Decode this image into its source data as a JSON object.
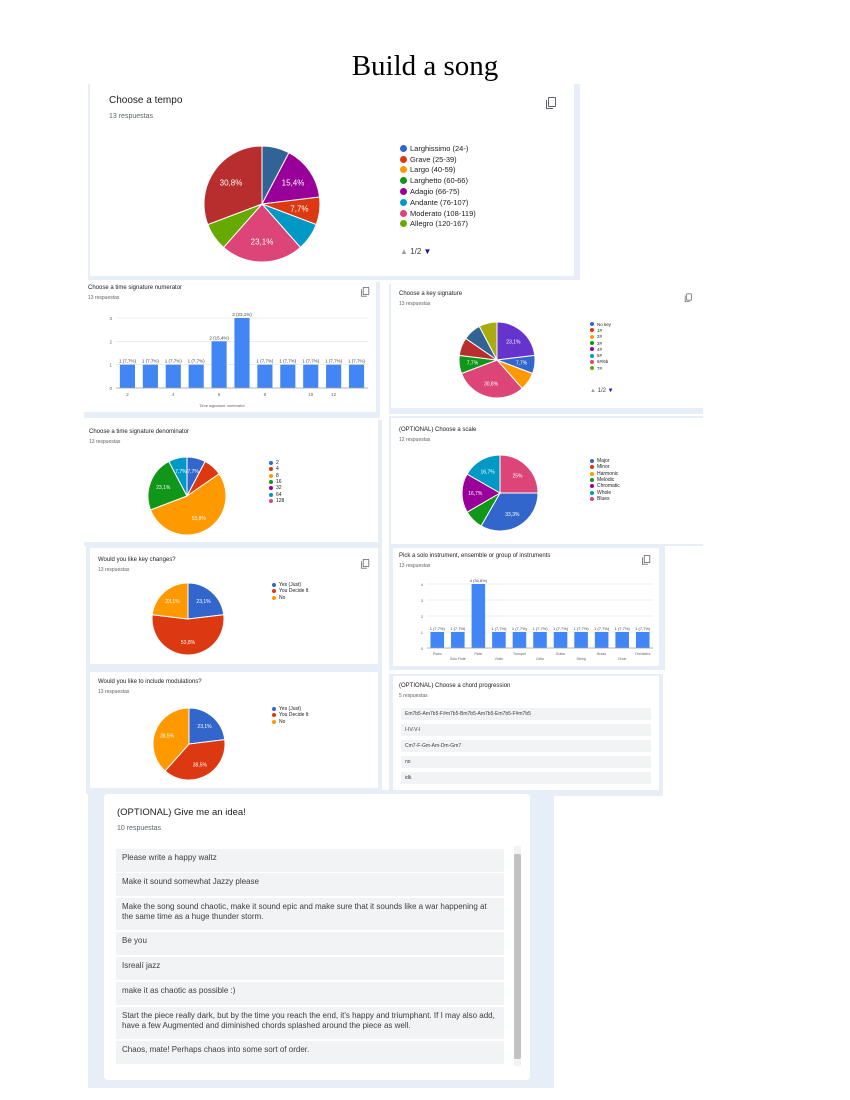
{
  "page": {
    "title": "Build a song"
  },
  "colors": [
    "#3366cc",
    "#dc3912",
    "#ff9900",
    "#109618",
    "#990099",
    "#0099c6",
    "#dd4477",
    "#66aa00",
    "#b82e2e",
    "#316395",
    "#994499",
    "#aaaa11"
  ],
  "tempo": {
    "title": "Choose a tempo",
    "count": "13 respuestas",
    "pager": "1/2",
    "legend": [
      "Larghissimo (24-)",
      "Grave (25-39)",
      "Largo (40-59)",
      "Larghetto (60-66)",
      "Adagio (66-75)",
      "Andante (76-107)",
      "Moderato (108-119)",
      "Allegro (120-167)"
    ],
    "chart_data": {
      "type": "pie",
      "title": "Choose a tempo",
      "slices": [
        {
          "label": "Larghissimo (24-)",
          "value": 7.7,
          "color": "#3366cc",
          "show": ""
        },
        {
          "label": "Grave (25-39)",
          "value": 0,
          "color": "#dc3912",
          "show": ""
        },
        {
          "label": "Largo (40-59)",
          "value": 0,
          "color": "#ff9900",
          "show": ""
        },
        {
          "label": "Larghetto (60-66)",
          "value": 0,
          "color": "#109618",
          "show": ""
        }
      ],
      "drawn": [
        {
          "value": 7.7,
          "color": "#316395",
          "label": ""
        },
        {
          "value": 15.4,
          "color": "#990099",
          "label": "15,4%"
        },
        {
          "value": 7.7,
          "color": "#dc3912",
          "label": "7,7%"
        },
        {
          "value": 7.7,
          "color": "#0099c6",
          "label": ""
        },
        {
          "value": 23.1,
          "color": "#dd4477",
          "label": "23,1%"
        },
        {
          "value": 7.7,
          "color": "#66aa00",
          "label": ""
        },
        {
          "value": 30.8,
          "color": "#b82e2e",
          "label": "30,8%"
        }
      ]
    }
  },
  "numerator": {
    "title": "Choose a time signature numerator",
    "count": "13 respuestas",
    "chart_data": {
      "type": "bar",
      "categories": [
        "2",
        "3",
        "4",
        "5",
        "6",
        "7",
        "8",
        "9",
        "11",
        "12",
        "13"
      ],
      "values": [
        1,
        1,
        1,
        1,
        2,
        3,
        1,
        1,
        1,
        1,
        1
      ],
      "labels": [
        "1 (7,7%)",
        "1 (7,7%)",
        "1 (7,7%)",
        "1 (7,7%)",
        "2 (15,4%)",
        "3 (23,1%)",
        "1 (7,7%)",
        "1 (7,7%)",
        "1 (7,7%)",
        "1 (7,7%)",
        "1 (7,7%)"
      ],
      "yticks": [
        "0",
        "1",
        "2",
        "3"
      ],
      "ylim": [
        0,
        3
      ],
      "xticks": [
        "2",
        "4",
        "6",
        "8",
        "10",
        "12"
      ],
      "xlabel": "Time signature numerator"
    }
  },
  "key": {
    "title": "Choose a key signature",
    "count": "13 respuestas",
    "pager": "1/2",
    "legend": [
      "No key",
      "1#",
      "2#",
      "3#",
      "4#",
      "5#",
      "6#/6b",
      "7#"
    ],
    "chart_data": {
      "type": "pie",
      "drawn": [
        {
          "value": 23.1,
          "color": "#6633cc",
          "label": "23,1%"
        },
        {
          "value": 7.7,
          "color": "#3366cc",
          "label": "7,7%"
        },
        {
          "value": 7.7,
          "color": "#ff9900",
          "label": ""
        },
        {
          "value": 30.8,
          "color": "#dd4477",
          "label": "30,8%"
        },
        {
          "value": 7.7,
          "color": "#109618",
          "label": "7,7%"
        },
        {
          "value": 7.7,
          "color": "#b82e2e",
          "label": ""
        },
        {
          "value": 7.7,
          "color": "#316395",
          "label": ""
        },
        {
          "value": 7.7,
          "color": "#aaaa11",
          "label": ""
        }
      ]
    }
  },
  "denominator": {
    "title": "Choose a time signature denominator",
    "count": "13 respuestas",
    "legend": [
      "2",
      "4",
      "8",
      "16",
      "32",
      "64",
      "128"
    ],
    "chart_data": {
      "type": "pie",
      "drawn": [
        {
          "value": 7.7,
          "color": "#3366cc",
          "label": "7,7%"
        },
        {
          "value": 7.7,
          "color": "#dc3912",
          "label": ""
        },
        {
          "value": 53.8,
          "color": "#ff9900",
          "label": "53,8%"
        },
        {
          "value": 23.1,
          "color": "#109618",
          "label": "23,1%"
        },
        {
          "value": 7.7,
          "color": "#0099c6",
          "label": "7,7%"
        }
      ]
    }
  },
  "scale": {
    "title": "(OPTIONAL) Choose a scale",
    "count": "12 respuestas",
    "legend": [
      "Major",
      "Minor",
      "Harmonic",
      "Melodic",
      "Chromatic",
      "Whole",
      "Blues"
    ],
    "chart_data": {
      "type": "pie",
      "drawn": [
        {
          "value": 25,
          "color": "#dd4477",
          "label": "25%"
        },
        {
          "value": 33.3,
          "color": "#3366cc",
          "label": "33,3%"
        },
        {
          "value": 8.3,
          "color": "#109618",
          "label": ""
        },
        {
          "value": 16.7,
          "color": "#990099",
          "label": "16,7%"
        },
        {
          "value": 16.7,
          "color": "#0099c6",
          "label": "16,7%"
        }
      ]
    }
  },
  "key_changes": {
    "title": "Would you like key changes?",
    "count": "13 respuestas",
    "legend": [
      "Yes (Just)",
      "You Decide It",
      "No"
    ],
    "chart_data": {
      "type": "pie",
      "drawn": [
        {
          "value": 23.1,
          "color": "#3366cc",
          "label": "23,1%"
        },
        {
          "value": 53.8,
          "color": "#dc3912",
          "label": "53,8%"
        },
        {
          "value": 23.1,
          "color": "#ff9900",
          "label": "23,1%"
        }
      ]
    }
  },
  "ensemble": {
    "title": "Pick a solo instrument, ensemble or group of instruments",
    "count": "13 respuestas",
    "chart_data": {
      "type": "bar",
      "categories": [
        "Piano",
        "Solo Flute",
        "Flute",
        "Violin",
        "Trumpet",
        "Cello",
        "Guitar",
        "String",
        "Brass",
        "Choir",
        "Orchestra"
      ],
      "values": [
        1,
        1,
        4,
        1,
        1,
        1,
        1,
        1,
        1,
        1,
        1
      ],
      "labels": [
        "1 (7,7%)",
        "1 (7,7%)",
        "4 (30,8%)",
        "1 (7,7%)",
        "1 (7,7%)",
        "1 (7,7%)",
        "1 (7,7%)",
        "1 (7,7%)",
        "1 (7,7%)",
        "1 (7,7%)",
        "1 (7,7%)"
      ],
      "yticks": [
        "0",
        "1",
        "2",
        "3",
        "4"
      ],
      "ylim": [
        0,
        4
      ]
    }
  },
  "modulations": {
    "title": "Would you like to include modulations?",
    "count": "13 respuestas",
    "legend": [
      "Yes (Just)",
      "You Decide It",
      "No"
    ],
    "chart_data": {
      "type": "pie",
      "drawn": [
        {
          "value": 23.1,
          "color": "#3366cc",
          "label": "23,1%"
        },
        {
          "value": 38.5,
          "color": "#dc3912",
          "label": "38,5%"
        },
        {
          "value": 38.5,
          "color": "#ff9900",
          "label": "38,5%"
        }
      ]
    }
  },
  "progression": {
    "title": "(OPTIONAL) Choose a chord progression",
    "count": "5 respuestas",
    "rows": [
      "Em7b5-Am7b5-F#m7b5-Bm7b5-Am7b5-Em7b5-F#m7b5",
      "I-IV-V-I",
      "Cm7-F-Gm-Am-Dm-Gm7",
      "no",
      "idk"
    ]
  },
  "idea": {
    "title": "(OPTIONAL) Give me an idea!",
    "count": "10 respuestas",
    "responses": [
      "Please write a happy waltz",
      "Make it sound somewhat Jazzy please",
      "Make the song sound chaotic, make it sound epic and make sure that it sounds like a war happening at the same time as a huge thunder storm.",
      "Be you",
      "Isrealí jazz",
      "make it as chaotic as possible :)",
      "Start the piece really dark, but by the time you reach the end, it's happy and triumphant. If I may also add, have a few Augmented and diminished chords splashed around the piece as well.",
      "Chaos, mate! Perhaps chaos into some sort of order."
    ]
  }
}
